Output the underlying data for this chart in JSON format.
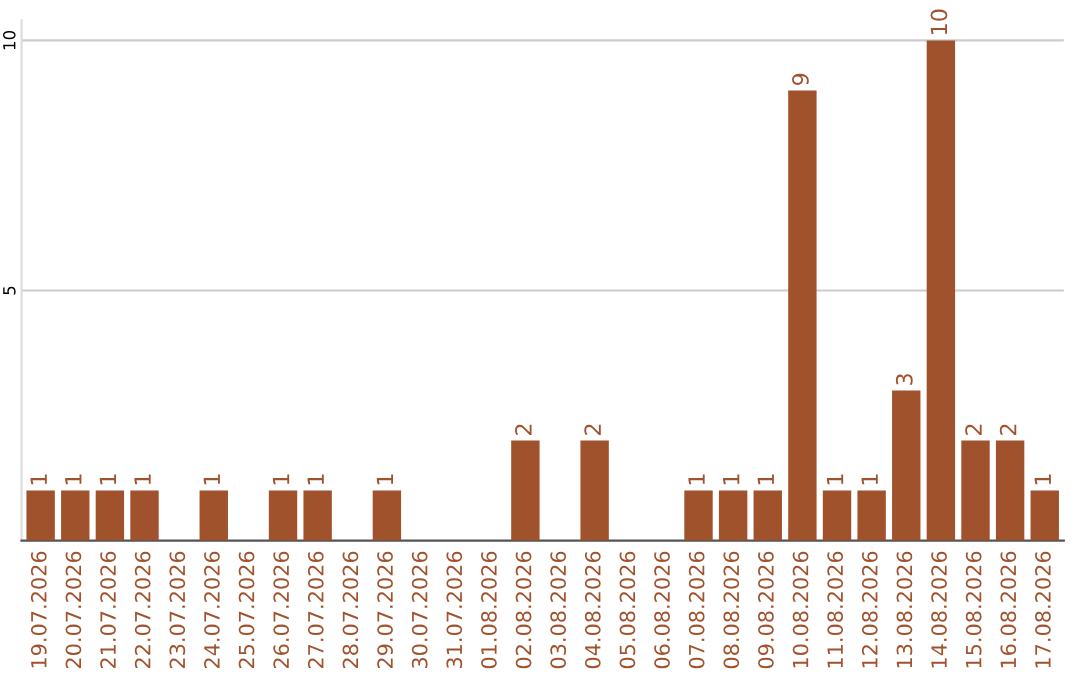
{
  "chart_data": {
    "type": "bar",
    "categories": [
      "19.07.2026",
      "20.07.2026",
      "21.07.2026",
      "22.07.2026",
      "23.07.2026",
      "24.07.2026",
      "25.07.2026",
      "26.07.2026",
      "27.07.2026",
      "28.07.2026",
      "29.07.2026",
      "30.07.2026",
      "31.07.2026",
      "01.08.2026",
      "02.08.2026",
      "03.08.2026",
      "04.08.2026",
      "05.08.2026",
      "06.08.2026",
      "07.08.2026",
      "08.08.2026",
      "09.08.2026",
      "10.08.2026",
      "11.08.2026",
      "12.08.2026",
      "13.08.2026",
      "14.08.2026",
      "15.08.2026",
      "16.08.2026",
      "17.08.2026"
    ],
    "values": [
      1,
      1,
      1,
      1,
      0,
      1,
      0,
      1,
      1,
      0,
      1,
      0,
      0,
      0,
      2,
      0,
      2,
      0,
      0,
      1,
      1,
      1,
      9,
      1,
      1,
      3,
      10,
      2,
      2,
      1
    ],
    "value_labels": [
      "1",
      "1",
      "1",
      "1",
      null,
      "1",
      null,
      "1",
      "1",
      null,
      "1",
      null,
      null,
      null,
      "2",
      null,
      "2",
      null,
      null,
      "1",
      "1",
      "1",
      "9",
      "1",
      "1",
      "3",
      "10",
      "2",
      "2",
      "1"
    ],
    "color": "#a0522d",
    "ylim": [
      0,
      10.4
    ],
    "yticks": [
      5,
      10
    ],
    "grid": "y",
    "legend": false
  }
}
